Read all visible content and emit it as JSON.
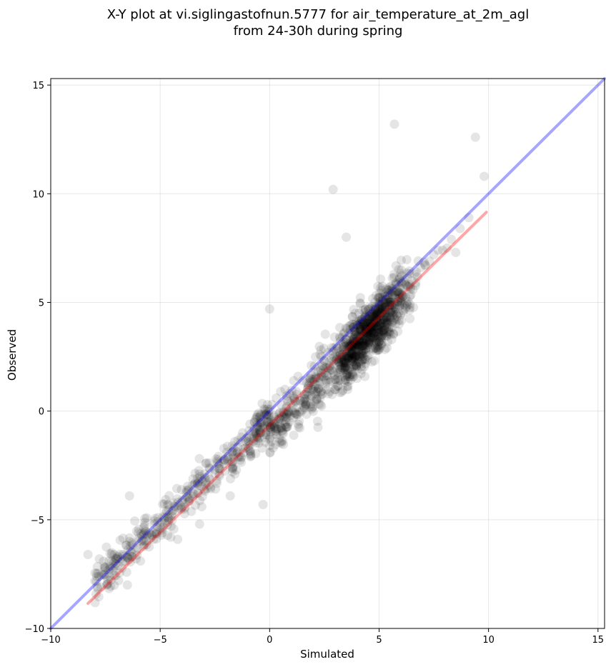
{
  "chart_data": {
    "type": "scatter",
    "title": "X-Y plot at vi.siglingastofnun.5777 for air_temperature_at_2m_agl",
    "subtitle": "from 24-30h during spring",
    "xlabel": "Simulated",
    "ylabel": "Observed",
    "xlim": [
      -10,
      15.3
    ],
    "ylim": [
      -10,
      15.3
    ],
    "x_ticks": [
      -10,
      -5,
      0,
      5,
      10,
      15
    ],
    "y_ticks": [
      -10,
      -5,
      0,
      5,
      10,
      15
    ],
    "x_tick_labels": [
      "−10",
      "−5",
      "0",
      "5",
      "10",
      "15"
    ],
    "y_tick_labels": [
      "−10",
      "−5",
      "0",
      "5",
      "10",
      "15"
    ],
    "grid": true,
    "legend": "none",
    "point_color": "#000000",
    "point_alpha": 0.1,
    "point_count_approx": 1500,
    "series": [
      {
        "x": [
          -8.3,
          -7.8,
          -7.7,
          -7.5,
          -7.3,
          -7.1,
          -6.9,
          -6.8,
          -6.6,
          -6.5,
          -6.4,
          -6.3,
          -6.1,
          -6.0,
          -5.9,
          -5.7,
          -5.5,
          -5.3,
          -5.1,
          -5.0,
          -4.9,
          -4.7,
          -4.5,
          -4.3,
          -4.2,
          -4.0,
          -3.9,
          -3.7,
          -3.5,
          -3.3,
          -3.1,
          -2.9,
          -2.7,
          -2.5,
          -2.3,
          -2.1,
          -1.9,
          -1.7,
          -1.5,
          -1.3,
          -1.1,
          -0.9,
          -0.7,
          -0.5,
          -0.3,
          -0.1,
          0.1,
          0.3,
          0.5,
          0.7,
          0.9,
          1.1,
          1.3,
          1.5,
          1.7,
          1.9,
          2.1,
          2.3,
          2.5,
          2.7,
          2.9,
          3.1,
          3.3,
          3.5,
          3.7,
          3.9,
          4.1,
          4.3,
          4.5,
          4.7,
          4.9,
          5.1,
          5.3,
          5.5,
          5.7,
          5.9,
          6.1,
          6.3,
          6.5,
          6.7,
          6.9,
          7.1,
          7.3,
          7.5,
          7.7,
          7.9,
          8.1,
          8.3,
          8.5,
          8.7,
          9.1,
          9.4,
          9.8,
          -6.4,
          -4.5,
          -3.2,
          -1.8,
          0.0,
          2.9,
          3.5,
          5.7,
          -0.3
        ],
        "y": [
          -6.6,
          -7.6,
          -8.1,
          -7.2,
          -7.6,
          -6.6,
          -7.8,
          -6.8,
          -6.9,
          -8.0,
          -6.0,
          -6.5,
          -6.8,
          -5.6,
          -6.9,
          -5.5,
          -5.6,
          -5.9,
          -4.9,
          -5.5,
          -5.6,
          -4.6,
          -5.3,
          -4.4,
          -5.9,
          -4.1,
          -4.5,
          -3.6,
          -3.8,
          -3.1,
          -4.4,
          -3.2,
          -3.5,
          -2.7,
          -2.9,
          -2.4,
          -2.1,
          -1.6,
          -1.9,
          -1.2,
          -1.7,
          -0.6,
          -0.5,
          -0.1,
          -0.8,
          0.3,
          0.3,
          0.6,
          0.9,
          1.0,
          0.8,
          1.4,
          1.6,
          1.4,
          1.3,
          2.1,
          1.8,
          2.6,
          2.3,
          2.7,
          2.3,
          2.9,
          2.8,
          3.3,
          3.0,
          3.5,
          3.2,
          3.9,
          3.7,
          3.3,
          4.3,
          4.5,
          4.2,
          4.9,
          5.0,
          5.4,
          5.3,
          6.1,
          6.0,
          6.4,
          6.6,
          6.7,
          6.9,
          7.2,
          7.4,
          7.4,
          7.5,
          7.9,
          7.3,
          8.4,
          8.9,
          12.6,
          10.8,
          -3.9,
          -4.8,
          -5.2,
          -3.9,
          4.7,
          10.2,
          8.0,
          13.2,
          -4.3
        ]
      }
    ],
    "reference_lines": [
      {
        "name": "",
        "color": "#0000ff",
        "alpha": 0.35,
        "x": [
          -10,
          15.3
        ],
        "y": [
          -10,
          15.3
        ]
      },
      {
        "name": "",
        "color": "#ff0000",
        "alpha": 0.35,
        "x": [
          -8.3,
          9.9
        ],
        "y": [
          -8.85,
          9.15
        ]
      }
    ]
  }
}
